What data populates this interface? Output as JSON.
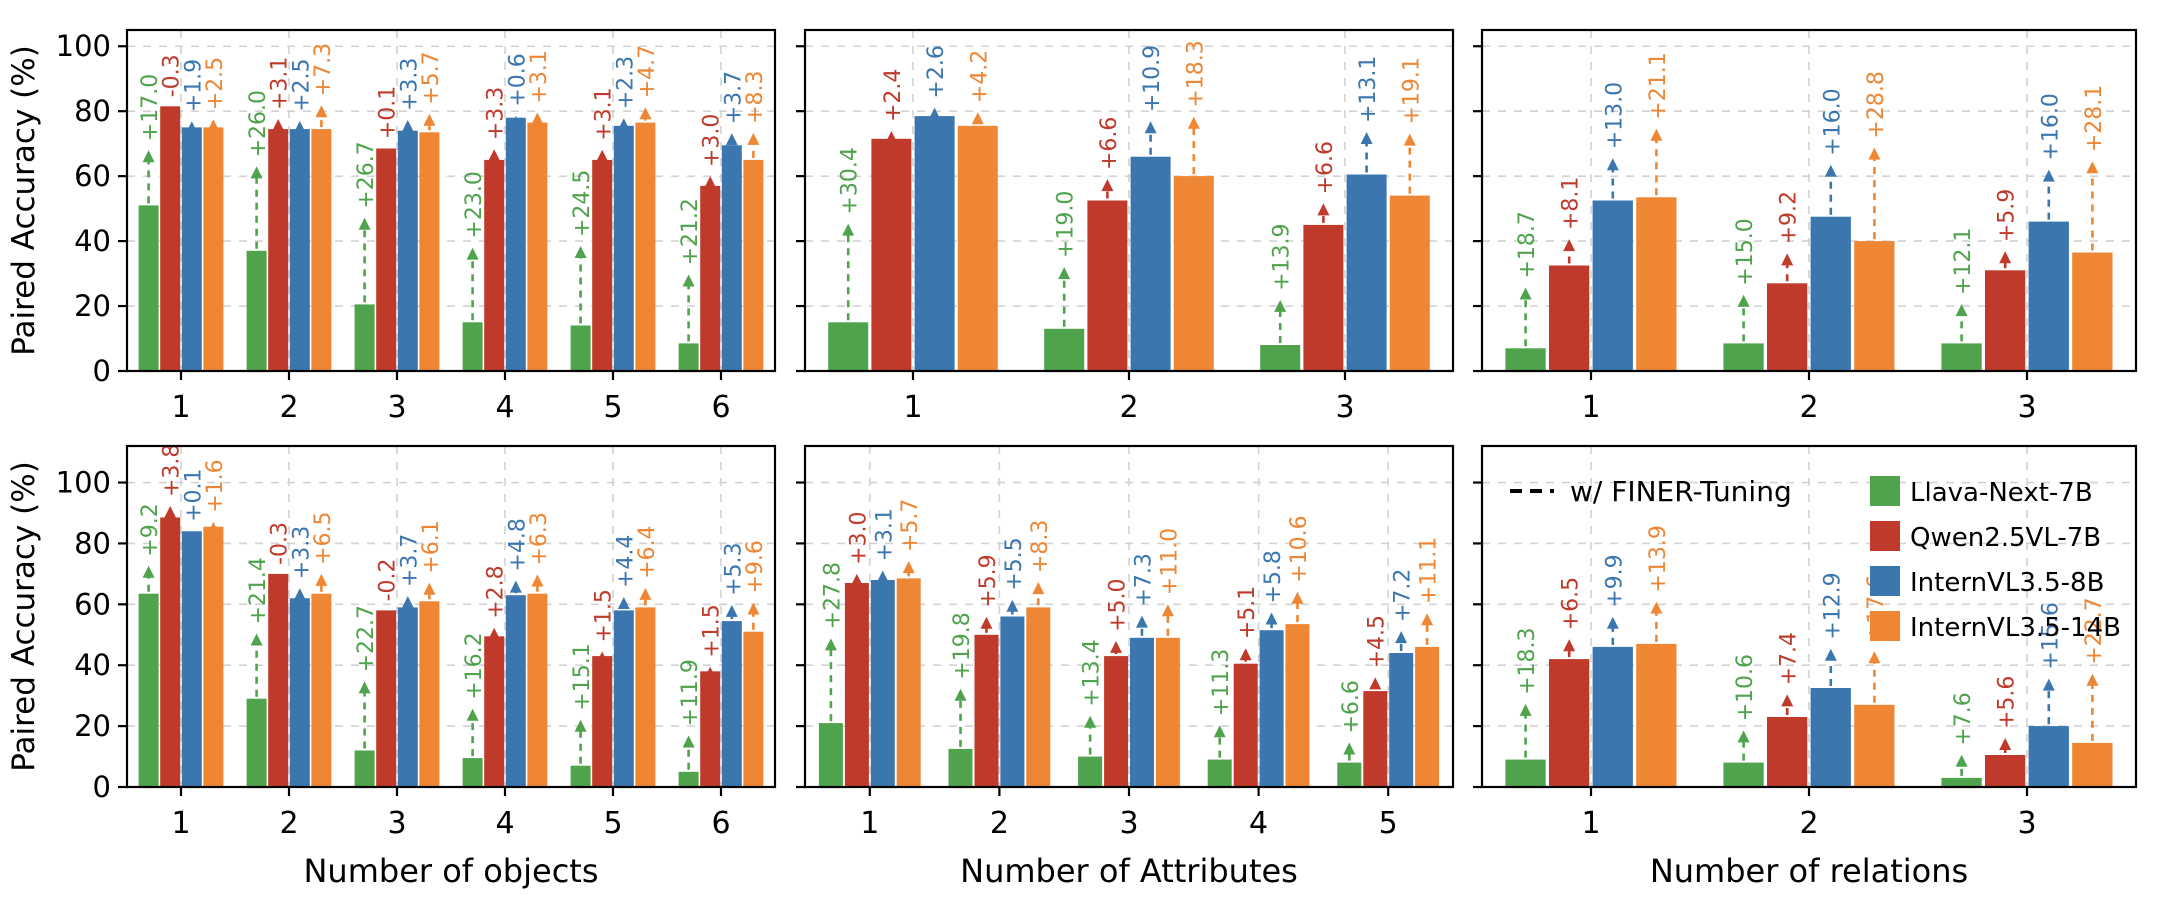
{
  "figure": {
    "ylabel": "Paired Accuracy (%)",
    "yticks": [
      0,
      20,
      40,
      60,
      80,
      100
    ],
    "legend": {
      "tuning_label": "w/ FINER-Tuning",
      "models": [
        {
          "name": "Llava-Next-7B",
          "color": "#4ea34c"
        },
        {
          "name": "Qwen2.5VL-7B",
          "color": "#bf3a2b"
        },
        {
          "name": "InternVL3.5-8B",
          "color": "#3b76af"
        },
        {
          "name": "InternVL3.5-14B",
          "color": "#ee8634"
        }
      ]
    }
  },
  "chart_data": [
    {
      "type": "bar",
      "id": "top-objects",
      "row": 0,
      "col": 0,
      "xlabel": "",
      "categories": [
        "1",
        "2",
        "3",
        "4",
        "5",
        "6"
      ],
      "show_ytick_labels": true,
      "legend": false,
      "ylim": [
        0,
        105
      ],
      "series": [
        {
          "name": "Llava-Next-7B",
          "color": "#4ea34c",
          "values": [
            51,
            37,
            20.5,
            15,
            14,
            8.5
          ],
          "gains": [
            "+17.0",
            "+26.0",
            "+26.7",
            "+23.0",
            "+24.5",
            "+21.2"
          ]
        },
        {
          "name": "Qwen2.5VL-7B",
          "color": "#bf3a2b",
          "values": [
            81.5,
            74.5,
            68.5,
            65,
            65,
            57
          ],
          "gains": [
            "-0.3",
            "+3.1",
            "+0.1",
            "+3.3",
            "+3.1",
            "+3.0"
          ]
        },
        {
          "name": "InternVL3.5-8B",
          "color": "#3b76af",
          "values": [
            75,
            74.5,
            74,
            78,
            75.5,
            69.5
          ],
          "gains": [
            "+1.9",
            "+2.5",
            "+3.3",
            "+0.6",
            "+2.3",
            "+3.7"
          ]
        },
        {
          "name": "InternVL3.5-14B",
          "color": "#ee8634",
          "values": [
            75,
            74.5,
            73.5,
            76.5,
            76.5,
            65
          ],
          "gains": [
            "+2.5",
            "+7.3",
            "+5.7",
            "+3.1",
            "+4.7",
            "+8.3"
          ]
        }
      ]
    },
    {
      "type": "bar",
      "id": "top-attributes",
      "row": 0,
      "col": 1,
      "xlabel": "",
      "categories": [
        "1",
        "2",
        "3"
      ],
      "show_ytick_labels": false,
      "legend": false,
      "ylim": [
        0,
        105
      ],
      "series": [
        {
          "name": "Llava-Next-7B",
          "color": "#4ea34c",
          "values": [
            15,
            13,
            8
          ],
          "gains": [
            "+30.4",
            "+19.0",
            "+13.9"
          ]
        },
        {
          "name": "Qwen2.5VL-7B",
          "color": "#bf3a2b",
          "values": [
            71.5,
            52.5,
            45
          ],
          "gains": [
            "+2.4",
            "+6.6",
            "+6.6"
          ]
        },
        {
          "name": "InternVL3.5-8B",
          "color": "#3b76af",
          "values": [
            78.5,
            66,
            60.5
          ],
          "gains": [
            "+2.6",
            "+10.9",
            "+13.1"
          ]
        },
        {
          "name": "InternVL3.5-14B",
          "color": "#ee8634",
          "values": [
            75.5,
            60,
            54
          ],
          "gains": [
            "+4.2",
            "+18.3",
            "+19.1"
          ]
        }
      ]
    },
    {
      "type": "bar",
      "id": "top-relations",
      "row": 0,
      "col": 2,
      "xlabel": "",
      "categories": [
        "1",
        "2",
        "3"
      ],
      "show_ytick_labels": false,
      "legend": false,
      "ylim": [
        0,
        105
      ],
      "series": [
        {
          "name": "Llava-Next-7B",
          "color": "#4ea34c",
          "values": [
            7,
            8.5,
            8.5
          ],
          "gains": [
            "+18.7",
            "+15.0",
            "+12.1"
          ]
        },
        {
          "name": "Qwen2.5VL-7B",
          "color": "#bf3a2b",
          "values": [
            32.5,
            27,
            31
          ],
          "gains": [
            "+8.1",
            "+9.2",
            "+5.9"
          ]
        },
        {
          "name": "InternVL3.5-8B",
          "color": "#3b76af",
          "values": [
            52.5,
            47.5,
            46
          ],
          "gains": [
            "+13.0",
            "+16.0",
            "+16.0"
          ]
        },
        {
          "name": "InternVL3.5-14B",
          "color": "#ee8634",
          "values": [
            53.5,
            40,
            36.5
          ],
          "gains": [
            "+21.1",
            "+28.8",
            "+28.1"
          ]
        }
      ]
    },
    {
      "type": "bar",
      "id": "bottom-objects",
      "row": 1,
      "col": 0,
      "xlabel": "Number of objects",
      "categories": [
        "1",
        "2",
        "3",
        "4",
        "5",
        "6"
      ],
      "show_ytick_labels": true,
      "legend": false,
      "ylim": [
        0,
        112
      ],
      "series": [
        {
          "name": "Llava-Next-7B",
          "color": "#4ea34c",
          "values": [
            63.5,
            29,
            12,
            9.5,
            7,
            5
          ],
          "gains": [
            "+9.2",
            "+21.4",
            "+22.7",
            "+16.2",
            "+15.1",
            "+11.9"
          ]
        },
        {
          "name": "Qwen2.5VL-7B",
          "color": "#bf3a2b",
          "values": [
            88.5,
            70,
            58,
            49.5,
            43,
            38
          ],
          "gains": [
            "+3.8",
            "-0.3",
            "-0.2",
            "+2.8",
            "+1.5",
            "+1.5"
          ]
        },
        {
          "name": "InternVL3.5-8B",
          "color": "#3b76af",
          "values": [
            84,
            62,
            59,
            63,
            58,
            54.5
          ],
          "gains": [
            "+0.1",
            "+3.3",
            "+3.7",
            "+4.8",
            "+4.4",
            "+5.3"
          ]
        },
        {
          "name": "InternVL3.5-14B",
          "color": "#ee8634",
          "values": [
            85.5,
            63.5,
            61,
            63.5,
            59,
            51
          ],
          "gains": [
            "+1.6",
            "+6.5",
            "+6.1",
            "+6.3",
            "+6.4",
            "+9.6"
          ]
        }
      ]
    },
    {
      "type": "bar",
      "id": "bottom-attributes",
      "row": 1,
      "col": 1,
      "xlabel": "Number of Attributes",
      "categories": [
        "1",
        "2",
        "3",
        "4",
        "5"
      ],
      "show_ytick_labels": false,
      "legend": false,
      "ylim": [
        0,
        112
      ],
      "series": [
        {
          "name": "Llava-Next-7B",
          "color": "#4ea34c",
          "values": [
            21,
            12.5,
            10,
            9,
            8
          ],
          "gains": [
            "+27.8",
            "+19.8",
            "+13.4",
            "+11.3",
            "+6.6"
          ]
        },
        {
          "name": "Qwen2.5VL-7B",
          "color": "#bf3a2b",
          "values": [
            67,
            50,
            43,
            40.5,
            31.5
          ],
          "gains": [
            "+3.0",
            "+5.9",
            "+5.0",
            "+5.1",
            "+4.5"
          ]
        },
        {
          "name": "InternVL3.5-8B",
          "color": "#3b76af",
          "values": [
            68,
            56,
            49,
            51.5,
            44
          ],
          "gains": [
            "+3.1",
            "+5.5",
            "+7.3",
            "+5.8",
            "+7.2"
          ]
        },
        {
          "name": "InternVL3.5-14B",
          "color": "#ee8634",
          "values": [
            68.5,
            59,
            49,
            53.5,
            46
          ],
          "gains": [
            "+5.7",
            "+8.3",
            "+11.0",
            "+10.6",
            "+11.1"
          ]
        }
      ]
    },
    {
      "type": "bar",
      "id": "bottom-relations",
      "row": 1,
      "col": 2,
      "xlabel": "Number of relations",
      "categories": [
        "1",
        "2",
        "3"
      ],
      "show_ytick_labels": false,
      "legend": true,
      "ylim": [
        0,
        112
      ],
      "series": [
        {
          "name": "Llava-Next-7B",
          "color": "#4ea34c",
          "values": [
            9,
            8,
            3
          ],
          "gains": [
            "+18.3",
            "+10.6",
            "+7.6"
          ]
        },
        {
          "name": "Qwen2.5VL-7B",
          "color": "#bf3a2b",
          "values": [
            42,
            23,
            10.5
          ],
          "gains": [
            "+6.5",
            "+7.4",
            "+5.6"
          ]
        },
        {
          "name": "InternVL3.5-8B",
          "color": "#3b76af",
          "values": [
            46,
            32.5,
            20
          ],
          "gains": [
            "+9.9",
            "+12.9",
            "+15.6"
          ]
        },
        {
          "name": "InternVL3.5-14B",
          "color": "#ee8634",
          "values": [
            47,
            27,
            14.5
          ],
          "gains": [
            "+13.9",
            "+17.6",
            "+22.7"
          ]
        }
      ]
    }
  ]
}
